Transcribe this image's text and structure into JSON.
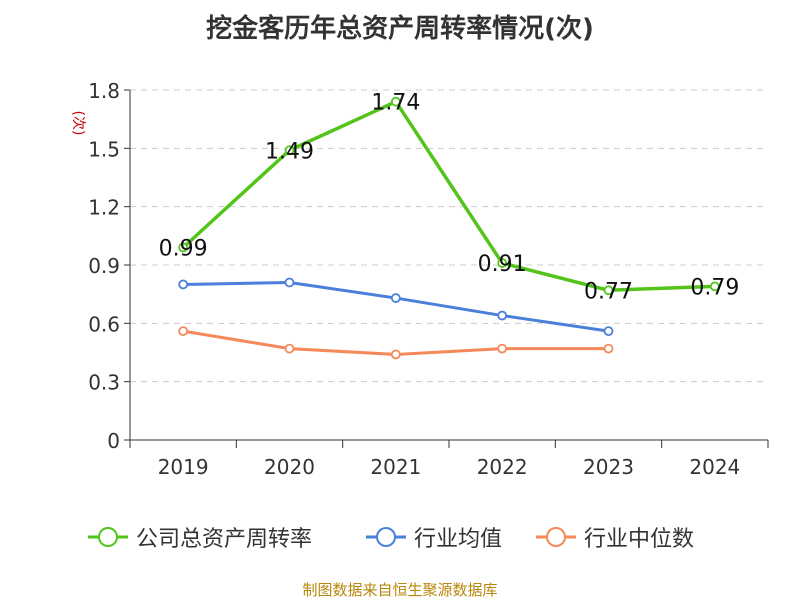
{
  "title": "挖金客历年总资产周转率情况(次)",
  "source": "制图数据来自恒生聚源数据库",
  "chart_data": {
    "type": "line",
    "title": "挖金客历年总资产周转率情况(次)",
    "ylabel": "(次)",
    "ylim": [
      0,
      1.8
    ],
    "yticks": [
      "0",
      "0.3",
      "0.6",
      "0.9",
      "1.2",
      "1.5",
      "1.8"
    ],
    "categories": [
      "2019",
      "2020",
      "2021",
      "2022",
      "2023",
      "2024"
    ],
    "grid": true,
    "legend_position": "bottom",
    "series": [
      {
        "name": "公司总资产周转率",
        "color": "#52c41a",
        "values": [
          0.99,
          1.49,
          1.74,
          0.91,
          0.77,
          0.79
        ],
        "labels": [
          "0.99",
          "1.49",
          "1.74",
          "0.91",
          "0.77",
          "0.79"
        ]
      },
      {
        "name": "行业均值",
        "color": "#4a7fdb",
        "values": [
          0.8,
          0.81,
          0.73,
          0.64,
          0.56,
          null
        ]
      },
      {
        "name": "行业中位数",
        "color": "#f5895a",
        "values": [
          0.56,
          0.47,
          0.44,
          0.47,
          0.47,
          null
        ]
      }
    ]
  }
}
